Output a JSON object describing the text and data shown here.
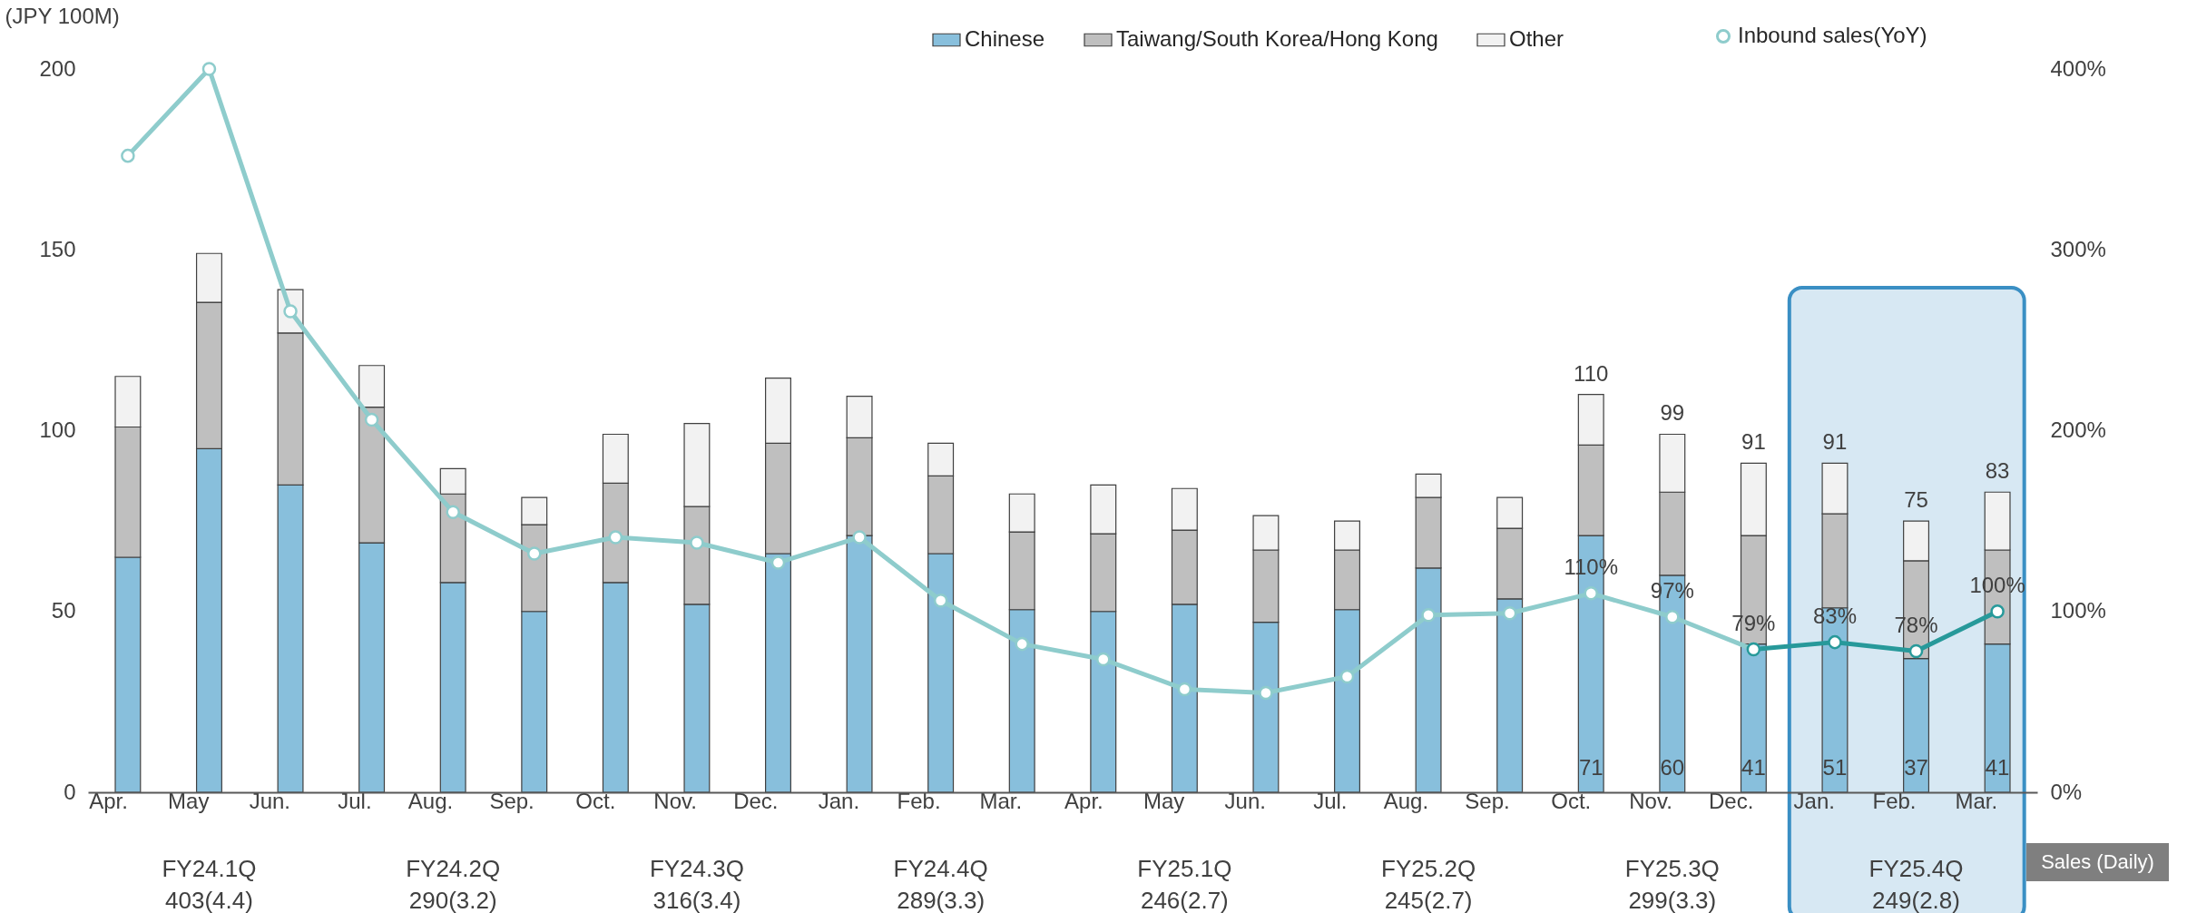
{
  "chart_data": {
    "type": "bar",
    "stacked": true,
    "ylabel": "(JPY 100M)",
    "grid": false,
    "legend": "top right",
    "marker": "circle",
    "categories": [
      "Apr.",
      "May",
      "Jun.",
      "Jul.",
      "Aug.",
      "Sep.",
      "Oct.",
      "Nov.",
      "Dec.",
      "Jan.",
      "Feb.",
      "Mar.",
      "Apr.",
      "May",
      "Jun.",
      "Jul.",
      "Aug.",
      "Sep.",
      "Oct.",
      "Nov.",
      "Dec.",
      "Jan.",
      "Feb.",
      "Mar."
    ],
    "ylim": [
      0,
      200
    ],
    "yticks": [
      0,
      50,
      100,
      150,
      200
    ],
    "y2lim": [
      0,
      400
    ],
    "y2ticks": [
      {
        "value": 0,
        "label": "0%"
      },
      {
        "value": 100,
        "label": "100%"
      },
      {
        "value": 200,
        "label": "200%"
      },
      {
        "value": 300,
        "label": "300%"
      },
      {
        "value": 400,
        "label": "400%"
      }
    ],
    "series": [
      {
        "name": "Chinese",
        "color": "#88bfdc",
        "values": [
          65,
          95,
          85,
          69,
          58,
          50,
          58,
          52,
          66,
          71,
          66,
          50.5,
          50,
          52,
          47,
          50.5,
          62,
          53.5,
          71,
          60,
          41,
          51,
          37,
          41
        ],
        "value_labels": [
          null,
          null,
          null,
          null,
          null,
          null,
          null,
          null,
          null,
          null,
          null,
          null,
          null,
          null,
          null,
          null,
          null,
          null,
          "71",
          "60",
          "41",
          "51",
          "37",
          "41"
        ]
      },
      {
        "name": "Taiwang/South Korea/Hong Kong",
        "color": "#bfbfbf",
        "values": [
          36,
          40.5,
          42,
          37.5,
          24.5,
          24,
          27.5,
          27,
          30.5,
          27,
          21.5,
          21.5,
          21.5,
          20.5,
          20,
          16.5,
          19.5,
          19.5,
          25,
          23,
          30,
          26,
          27,
          26
        ]
      },
      {
        "name": "Other",
        "color": "#f2f2f2",
        "values": [
          14,
          13.5,
          12,
          11.5,
          7,
          7.5,
          13.5,
          23,
          18,
          11.5,
          9,
          10.5,
          13.5,
          11.5,
          9.5,
          8,
          6.5,
          8.5,
          14,
          16,
          20,
          14,
          11,
          16
        ]
      },
      {
        "name": "Inbound sales(YoY)",
        "type": "line",
        "axis": "y2",
        "color": "#8ecccc",
        "values": [
          352,
          400,
          266,
          206,
          155,
          132,
          141,
          138,
          127,
          141,
          106,
          82,
          73.5,
          57,
          55,
          64,
          98,
          99,
          110,
          97,
          79,
          null,
          null,
          null
        ],
        "value_labels": [
          null,
          null,
          null,
          null,
          null,
          null,
          null,
          null,
          null,
          null,
          null,
          null,
          null,
          null,
          null,
          null,
          null,
          null,
          "110%",
          "97%",
          "79%",
          null,
          null,
          null
        ]
      },
      {
        "type": "line",
        "axis": "y2",
        "color": "#27999a",
        "values": [
          null,
          null,
          null,
          null,
          null,
          null,
          null,
          null,
          null,
          null,
          null,
          null,
          null,
          null,
          null,
          null,
          null,
          null,
          null,
          null,
          79,
          83,
          78,
          100
        ],
        "value_labels": [
          null,
          null,
          null,
          null,
          null,
          null,
          null,
          null,
          null,
          null,
          null,
          null,
          null,
          null,
          null,
          null,
          null,
          null,
          null,
          null,
          null,
          "83%",
          "78%",
          "100%"
        ]
      }
    ],
    "totals": [
      null,
      null,
      null,
      null,
      null,
      null,
      null,
      null,
      null,
      null,
      null,
      null,
      null,
      null,
      null,
      null,
      null,
      null,
      "110",
      "99",
      "91",
      "91",
      "75",
      "83"
    ],
    "annotations": [
      "FY24.1Q\n403(4.4)",
      "FY24.2Q\n290(3.2)",
      "FY24.3Q\n316(3.4)",
      "FY24.4Q\n289(3.3)",
      "FY25.1Q\n246(2.7)",
      "FY25.2Q\n245(2.7)",
      "FY25.3Q\n299(3.3)",
      "FY25.4Q\n249(2.8)",
      "Sales (Daily)"
    ]
  }
}
